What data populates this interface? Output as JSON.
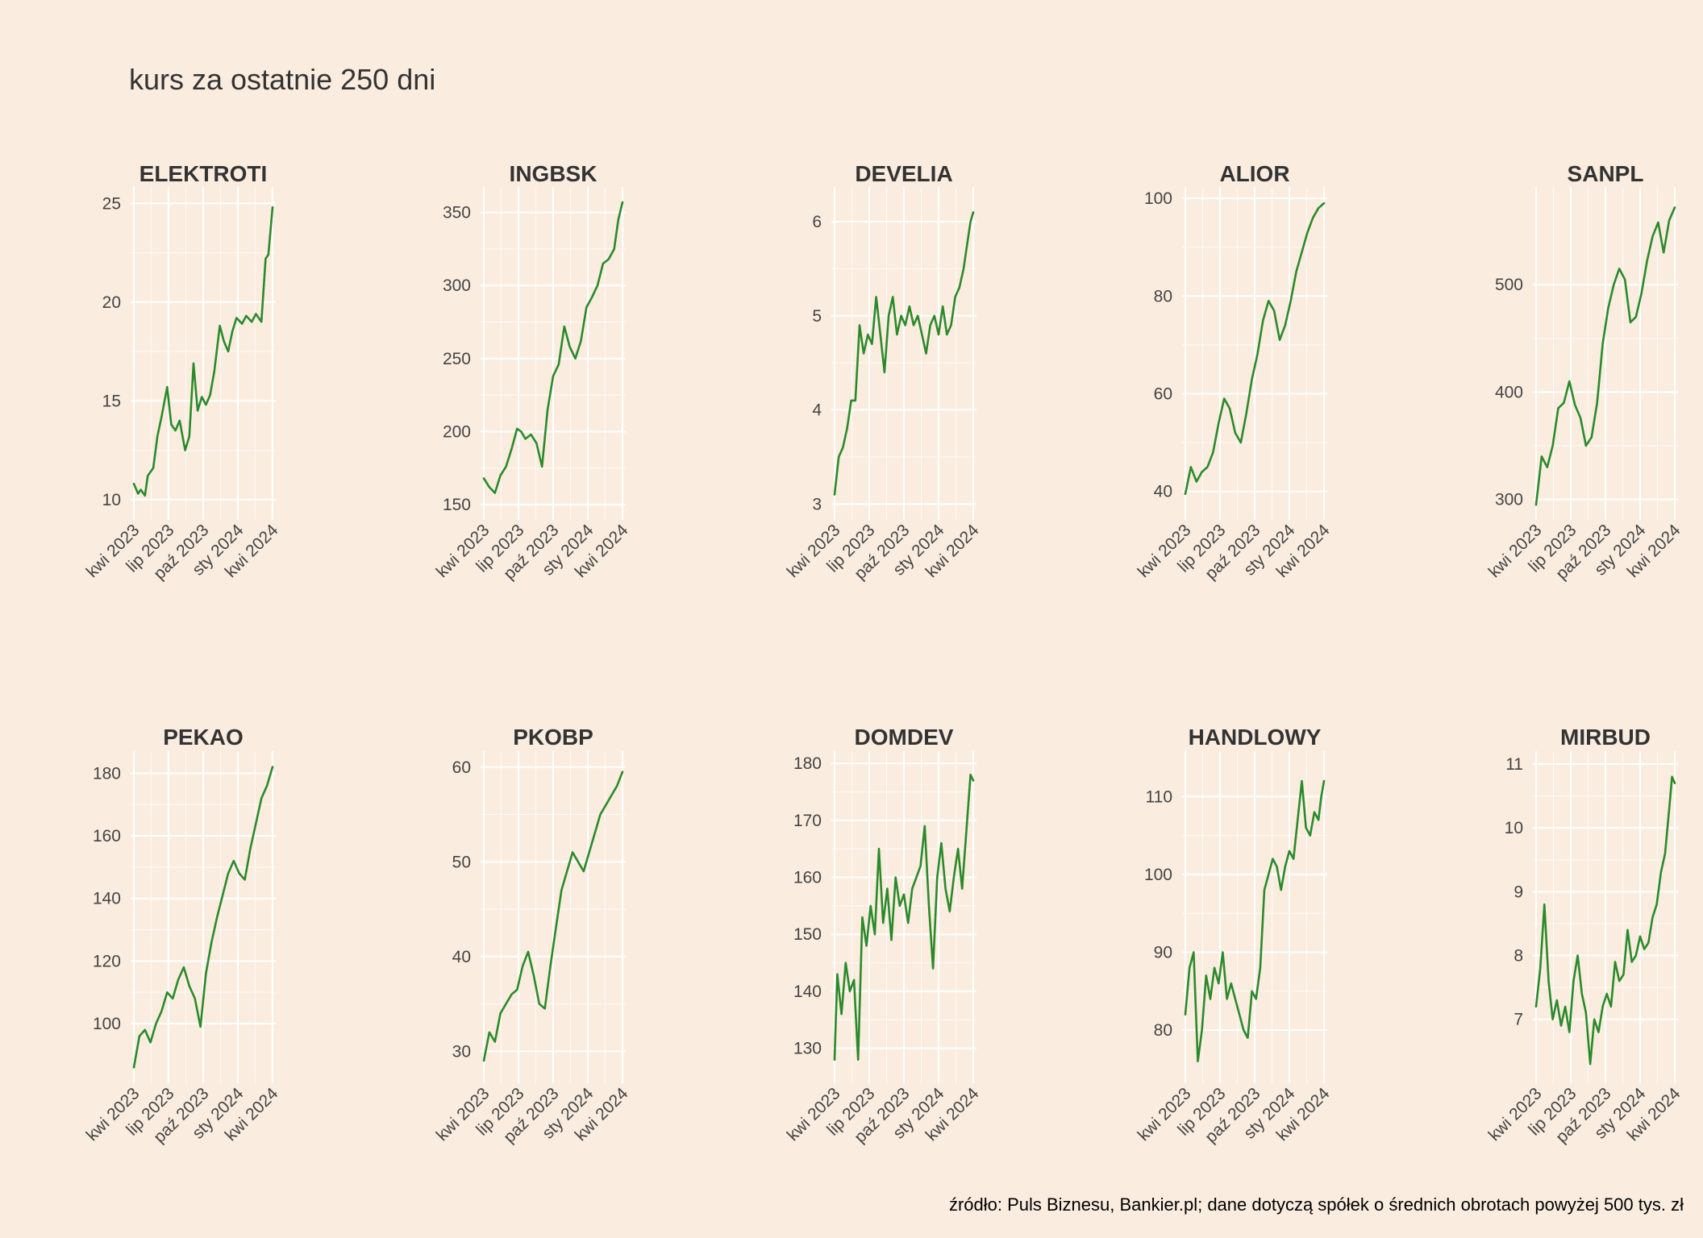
{
  "figure": {
    "title": "kurs za ostatnie 250 dni",
    "caption": "źródło: Puls Biznesu, Bankier.pl; dane dotyczą spółek o średnich obrotach powyżej 500 tys. zł"
  },
  "colors": {
    "background": "#faede0",
    "line": "#2a8a2a",
    "grid": "#ffffff",
    "text": "#333333"
  },
  "chart_data": [
    {
      "type": "line",
      "title": "ELEKTROTI",
      "x_ticks": [
        "kwi 2023",
        "lip 2023",
        "paź 2023",
        "sty 2024",
        "kwi 2024"
      ],
      "y_ticks": [
        10,
        15,
        20,
        25
      ],
      "ylim": [
        9.3,
        25.5
      ],
      "x": [
        0,
        0.03,
        0.05,
        0.08,
        0.1,
        0.14,
        0.17,
        0.2,
        0.24,
        0.27,
        0.3,
        0.33,
        0.37,
        0.4,
        0.43,
        0.46,
        0.49,
        0.52,
        0.55,
        0.58,
        0.62,
        0.65,
        0.68,
        0.71,
        0.74,
        0.78,
        0.81,
        0.85,
        0.88,
        0.92,
        0.95,
        0.97,
        0.99,
        1.0
      ],
      "y": [
        10.8,
        10.3,
        10.5,
        10.2,
        11.2,
        11.6,
        13.2,
        14.2,
        15.7,
        13.8,
        13.5,
        14.0,
        12.5,
        13.2,
        16.9,
        14.5,
        15.2,
        14.8,
        15.3,
        16.5,
        18.8,
        18.0,
        17.5,
        18.5,
        19.2,
        18.9,
        19.3,
        19.0,
        19.4,
        19.0,
        22.2,
        22.4,
        24.0,
        24.8
      ],
      "grid": true
    },
    {
      "type": "line",
      "title": "INGBSK",
      "x_ticks": [
        "kwi 2023",
        "lip 2023",
        "paź 2023",
        "sty 2024",
        "kwi 2024"
      ],
      "y_ticks": [
        150,
        200,
        250,
        300,
        350
      ],
      "ylim": [
        144,
        363
      ],
      "x": [
        0,
        0.04,
        0.08,
        0.12,
        0.16,
        0.2,
        0.24,
        0.27,
        0.3,
        0.34,
        0.38,
        0.42,
        0.46,
        0.5,
        0.54,
        0.58,
        0.62,
        0.66,
        0.7,
        0.74,
        0.78,
        0.82,
        0.86,
        0.9,
        0.94,
        0.97,
        1.0
      ],
      "y": [
        168,
        162,
        158,
        170,
        176,
        188,
        202,
        200,
        195,
        198,
        192,
        176,
        215,
        238,
        246,
        272,
        258,
        250,
        262,
        285,
        292,
        300,
        315,
        318,
        325,
        345,
        357
      ],
      "grid": true
    },
    {
      "type": "line",
      "title": "DEVELIA",
      "x_ticks": [
        "kwi 2023",
        "lip 2023",
        "paź 2023",
        "sty 2024",
        "kwi 2024"
      ],
      "y_ticks": [
        3,
        4,
        5,
        6
      ],
      "ylim": [
        2.9,
        6.3
      ],
      "x": [
        0,
        0.03,
        0.06,
        0.09,
        0.12,
        0.15,
        0.18,
        0.21,
        0.24,
        0.27,
        0.3,
        0.33,
        0.36,
        0.39,
        0.42,
        0.45,
        0.48,
        0.51,
        0.54,
        0.57,
        0.6,
        0.63,
        0.66,
        0.69,
        0.72,
        0.75,
        0.78,
        0.81,
        0.84,
        0.87,
        0.9,
        0.93,
        0.96,
        0.98,
        1.0
      ],
      "y": [
        3.1,
        3.5,
        3.6,
        3.8,
        4.1,
        4.1,
        4.9,
        4.6,
        4.8,
        4.7,
        5.2,
        4.8,
        4.4,
        5.0,
        5.2,
        4.8,
        5.0,
        4.9,
        5.1,
        4.9,
        5.0,
        4.8,
        4.6,
        4.9,
        5.0,
        4.8,
        5.1,
        4.8,
        4.9,
        5.2,
        5.3,
        5.5,
        5.8,
        6.0,
        6.1
      ],
      "grid": true
    },
    {
      "type": "line",
      "title": "ALIOR",
      "x_ticks": [
        "kwi 2023",
        "lip 2023",
        "paź 2023",
        "sty 2024",
        "kwi 2024"
      ],
      "y_ticks": [
        40,
        60,
        80,
        100
      ],
      "ylim": [
        35.5,
        101
      ],
      "x": [
        0,
        0.04,
        0.08,
        0.12,
        0.16,
        0.2,
        0.24,
        0.28,
        0.32,
        0.36,
        0.4,
        0.44,
        0.48,
        0.52,
        0.56,
        0.6,
        0.64,
        0.68,
        0.72,
        0.76,
        0.8,
        0.84,
        0.88,
        0.92,
        0.96,
        1.0
      ],
      "y": [
        39.5,
        45,
        42,
        44,
        45,
        48,
        54,
        59,
        57,
        52,
        50,
        56,
        63,
        68,
        75,
        79,
        77,
        71,
        74,
        79,
        85,
        89,
        93,
        96,
        98,
        99
      ],
      "grid": true
    },
    {
      "type": "line",
      "title": "SANPL",
      "x_ticks": [
        "kwi 2023",
        "lip 2023",
        "paź 2023",
        "sty 2024",
        "kwi 2024"
      ],
      "y_ticks": [
        300,
        400,
        500
      ],
      "ylim": [
        287,
        585
      ],
      "x": [
        0,
        0.04,
        0.08,
        0.12,
        0.16,
        0.2,
        0.24,
        0.28,
        0.32,
        0.36,
        0.4,
        0.44,
        0.48,
        0.52,
        0.56,
        0.6,
        0.64,
        0.68,
        0.72,
        0.76,
        0.8,
        0.84,
        0.88,
        0.92,
        0.96,
        1.0
      ],
      "y": [
        295,
        340,
        330,
        350,
        385,
        390,
        410,
        388,
        376,
        350,
        358,
        390,
        445,
        478,
        500,
        515,
        505,
        465,
        470,
        492,
        522,
        545,
        558,
        530,
        560,
        572
      ],
      "grid": true
    },
    {
      "type": "line",
      "title": "PEKAO",
      "x_ticks": [
        "kwi 2023",
        "lip 2023",
        "paź 2023",
        "sty 2024",
        "kwi 2024"
      ],
      "y_ticks": [
        100,
        120,
        140,
        160,
        180
      ],
      "ylim": [
        83,
        185
      ],
      "x": [
        0,
        0.04,
        0.08,
        0.12,
        0.16,
        0.2,
        0.24,
        0.28,
        0.32,
        0.36,
        0.4,
        0.44,
        0.48,
        0.52,
        0.56,
        0.6,
        0.64,
        0.68,
        0.72,
        0.76,
        0.8,
        0.84,
        0.88,
        0.92,
        0.96,
        1.0
      ],
      "y": [
        86,
        96,
        98,
        94,
        100,
        104,
        110,
        108,
        114,
        118,
        112,
        108,
        99,
        116,
        126,
        134,
        141,
        148,
        152,
        148,
        146,
        156,
        164,
        172,
        176,
        182
      ],
      "grid": true
    },
    {
      "type": "line",
      "title": "PKOBP",
      "x_ticks": [
        "kwi 2023",
        "lip 2023",
        "paź 2023",
        "sty 2024",
        "kwi 2024"
      ],
      "y_ticks": [
        30,
        40,
        50,
        60
      ],
      "ylim": [
        27.3,
        61
      ],
      "x": [
        0,
        0.04,
        0.08,
        0.12,
        0.16,
        0.2,
        0.24,
        0.28,
        0.32,
        0.36,
        0.4,
        0.44,
        0.48,
        0.52,
        0.56,
        0.6,
        0.64,
        0.68,
        0.72,
        0.76,
        0.8,
        0.84,
        0.88,
        0.92,
        0.96,
        1.0
      ],
      "y": [
        29,
        32,
        31,
        34,
        35,
        36,
        36.5,
        39,
        40.5,
        38,
        35,
        34.5,
        39,
        43,
        47,
        49,
        51,
        50,
        49,
        51,
        53,
        55,
        56,
        57,
        58,
        59.5
      ],
      "grid": true
    },
    {
      "type": "line",
      "title": "DOMDEV",
      "x_ticks": [
        "kwi 2023",
        "lip 2023",
        "paź 2023",
        "sty 2024",
        "kwi 2024"
      ],
      "y_ticks": [
        130,
        140,
        150,
        160,
        170,
        180
      ],
      "ylim": [
        125,
        181
      ],
      "x": [
        0,
        0.02,
        0.05,
        0.08,
        0.11,
        0.14,
        0.17,
        0.2,
        0.23,
        0.26,
        0.29,
        0.32,
        0.35,
        0.38,
        0.41,
        0.44,
        0.47,
        0.5,
        0.53,
        0.56,
        0.59,
        0.62,
        0.65,
        0.68,
        0.71,
        0.74,
        0.77,
        0.8,
        0.83,
        0.86,
        0.89,
        0.92,
        0.95,
        0.98,
        1.0
      ],
      "y": [
        128,
        143,
        136,
        145,
        140,
        142,
        128,
        153,
        148,
        155,
        150,
        165,
        152,
        158,
        149,
        160,
        155,
        157,
        152,
        158,
        160,
        162,
        169,
        155,
        144,
        160,
        166,
        158,
        154,
        160,
        165,
        158,
        168,
        178,
        177
      ],
      "grid": true
    },
    {
      "type": "line",
      "title": "HANDLOWY",
      "x_ticks": [
        "kwi 2023",
        "lip 2023",
        "paź 2023",
        "sty 2024",
        "kwi 2024"
      ],
      "y_ticks": [
        80,
        90,
        100,
        110
      ],
      "ylim": [
        74,
        115
      ],
      "x": [
        0,
        0.03,
        0.06,
        0.09,
        0.12,
        0.15,
        0.18,
        0.21,
        0.24,
        0.27,
        0.3,
        0.33,
        0.36,
        0.39,
        0.42,
        0.45,
        0.48,
        0.51,
        0.54,
        0.57,
        0.6,
        0.63,
        0.66,
        0.69,
        0.72,
        0.75,
        0.78,
        0.81,
        0.84,
        0.87,
        0.9,
        0.93,
        0.96,
        0.98,
        1.0
      ],
      "y": [
        82,
        88,
        90,
        76,
        80,
        87,
        84,
        88,
        86,
        90,
        84,
        86,
        84,
        82,
        80,
        79,
        85,
        84,
        88,
        98,
        100,
        102,
        101,
        98,
        101,
        103,
        102,
        107,
        112,
        106,
        105,
        108,
        107,
        110,
        112
      ],
      "grid": true
    },
    {
      "type": "line",
      "title": "MIRBUD",
      "x_ticks": [
        "kwi 2023",
        "lip 2023",
        "paź 2023",
        "sty 2024",
        "kwi 2024"
      ],
      "y_ticks": [
        7,
        8,
        9,
        10,
        11
      ],
      "ylim": [
        6.1,
        11.1
      ],
      "x": [
        0,
        0.03,
        0.06,
        0.09,
        0.12,
        0.15,
        0.18,
        0.21,
        0.24,
        0.27,
        0.3,
        0.33,
        0.36,
        0.39,
        0.42,
        0.45,
        0.48,
        0.51,
        0.54,
        0.57,
        0.6,
        0.63,
        0.66,
        0.69,
        0.72,
        0.75,
        0.78,
        0.81,
        0.84,
        0.87,
        0.9,
        0.93,
        0.96,
        0.98,
        1.0
      ],
      "y": [
        7.2,
        7.8,
        8.8,
        7.6,
        7.0,
        7.3,
        6.9,
        7.2,
        6.8,
        7.6,
        8.0,
        7.4,
        7.1,
        6.3,
        7.0,
        6.8,
        7.2,
        7.4,
        7.2,
        7.9,
        7.6,
        7.7,
        8.4,
        7.9,
        8.0,
        8.3,
        8.1,
        8.2,
        8.6,
        8.8,
        9.3,
        9.6,
        10.3,
        10.8,
        10.7
      ],
      "grid": true
    }
  ]
}
